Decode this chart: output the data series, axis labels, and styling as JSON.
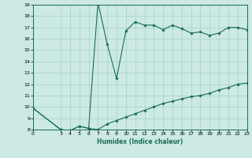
{
  "title": "",
  "xlabel": "Humidex (Indice chaleur)",
  "ylabel": "",
  "background_color": "#cce9e4",
  "line_color": "#1a6b5a",
  "grid_color": "#99ccc4",
  "upper_x": [
    0,
    3,
    4,
    5,
    6,
    7,
    8,
    9,
    10,
    11,
    12,
    13,
    14,
    15,
    16,
    17,
    18,
    19,
    20,
    21,
    22,
    23
  ],
  "upper_y": [
    9.9,
    8.0,
    7.9,
    8.3,
    8.1,
    19.2,
    15.5,
    12.5,
    16.7,
    17.5,
    17.2,
    17.2,
    16.8,
    17.2,
    16.9,
    16.5,
    16.6,
    16.3,
    16.5,
    17.0,
    17.0,
    16.8
  ],
  "lower_x": [
    0,
    3,
    4,
    5,
    6,
    7,
    8,
    9,
    10,
    11,
    12,
    13,
    14,
    15,
    16,
    17,
    18,
    19,
    20,
    21,
    22,
    23
  ],
  "lower_y": [
    9.9,
    8.0,
    7.9,
    8.3,
    8.1,
    8.0,
    8.5,
    8.8,
    9.1,
    9.4,
    9.7,
    10.0,
    10.3,
    10.5,
    10.7,
    10.9,
    11.0,
    11.2,
    11.5,
    11.7,
    12.0,
    12.1
  ],
  "ylim": [
    8,
    19
  ],
  "xlim": [
    0,
    23
  ],
  "yticks": [
    8,
    9,
    10,
    11,
    12,
    13,
    14,
    15,
    16,
    17,
    18,
    19
  ],
  "xticks": [
    0,
    3,
    4,
    5,
    6,
    7,
    8,
    9,
    10,
    11,
    12,
    13,
    14,
    15,
    16,
    17,
    18,
    19,
    20,
    21,
    22,
    23
  ]
}
